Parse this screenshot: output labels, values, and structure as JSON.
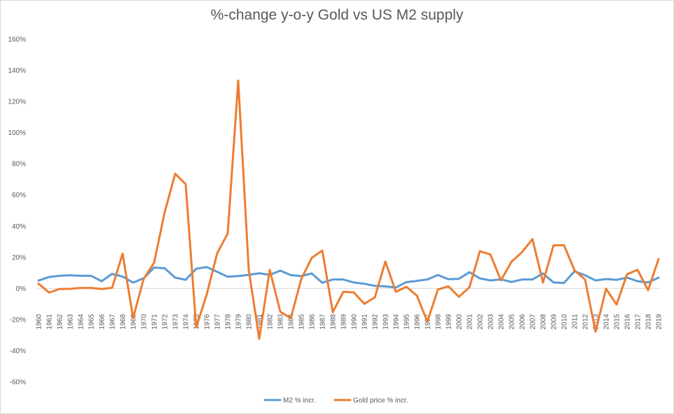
{
  "chart_data": {
    "type": "line",
    "title": "%-change y-o-y Gold vs US M2 supply",
    "xlabel": "",
    "ylabel": "",
    "ylim": [
      -60,
      160
    ],
    "yticks": [
      -60,
      -40,
      -20,
      0,
      20,
      40,
      60,
      80,
      100,
      120,
      140,
      160
    ],
    "ytick_labels": [
      "-60%",
      "-40%",
      "-20%",
      "0%",
      "20%",
      "40%",
      "60%",
      "80%",
      "100%",
      "120%",
      "140%",
      "160%"
    ],
    "grid": false,
    "legend_position": "bottom",
    "x": [
      "1960",
      "1961",
      "1962",
      "1963",
      "1964",
      "1965",
      "1966",
      "1967",
      "1968",
      "1969",
      "1970",
      "1971",
      "1972",
      "1973",
      "1974",
      "1975",
      "1976",
      "1977",
      "1978",
      "1979",
      "1980",
      "1981",
      "1982",
      "1983",
      "1984",
      "1985",
      "1986",
      "1987",
      "1988",
      "1989",
      "1990",
      "1991",
      "1992",
      "1993",
      "1994",
      "1995",
      "1996",
      "1997",
      "1998",
      "1999",
      "2000",
      "2001",
      "2002",
      "2003",
      "2004",
      "2005",
      "2006",
      "2007",
      "2008",
      "2009",
      "2010",
      "2011",
      "2012",
      "2013",
      "2014",
      "2015",
      "2016",
      "2017",
      "2018",
      "2019"
    ],
    "series": [
      {
        "name": "M2 % incr.",
        "color": "#5b9bd5",
        "values": [
          5,
          7.3,
          8.1,
          8.4,
          8.1,
          8.1,
          4.6,
          9.3,
          7.6,
          3.7,
          6.5,
          13.4,
          12.9,
          6.9,
          5.5,
          12.6,
          13.7,
          10.6,
          7.5,
          7.9,
          8.7,
          9.7,
          8.7,
          11.4,
          8.5,
          7.9,
          9.6,
          3.6,
          5.7,
          5.7,
          3.8,
          3,
          1.6,
          1.3,
          0.6,
          4,
          4.8,
          5.7,
          8.6,
          5.9,
          6.1,
          10.4,
          6.4,
          5.1,
          5.8,
          4.1,
          5.7,
          5.7,
          9.6,
          3.8,
          3.5,
          11,
          8.4,
          5.1,
          6,
          5.5,
          6.9,
          4.6,
          3.8,
          6.9
        ]
      },
      {
        "name": "Gold price % incr.",
        "color": "#ed7d31",
        "values": [
          3,
          -2.7,
          -0.4,
          -0.3,
          0.3,
          0.3,
          -0.4,
          0.4,
          22.3,
          -19.1,
          6.1,
          16.5,
          48.8,
          73.6,
          66.9,
          -25,
          -4,
          22.6,
          35.2,
          133.4,
          12,
          -32.4,
          11.9,
          -14.9,
          -19.2,
          6,
          19.6,
          24.3,
          -15.3,
          -2.2,
          -2.6,
          -9.9,
          -5.8,
          17.2,
          -2.2,
          1,
          -4.6,
          -21.4,
          -0.7,
          1.3,
          -5.4,
          0.7,
          23.9,
          21.7,
          5.1,
          17.1,
          23.2,
          31.6,
          3.7,
          27.6,
          27.7,
          11.6,
          5.7,
          -27.8,
          -0.2,
          -10.4,
          9.1,
          11.9,
          -1.2,
          18.9
        ]
      }
    ]
  }
}
